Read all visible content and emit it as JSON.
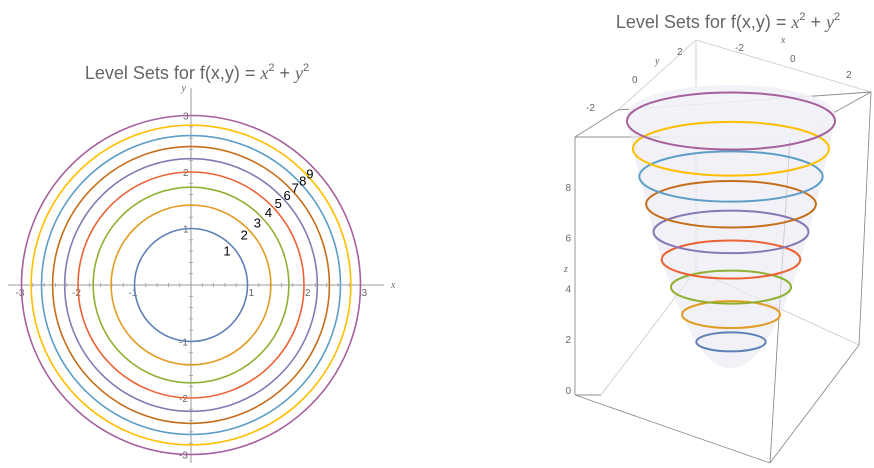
{
  "chart_data": [
    {
      "type": "contour",
      "title_prefix": "Level Sets for f(x,y) = ",
      "title_term1": "x",
      "title_term2": "y",
      "title_exp": "2",
      "title_plus": " + ",
      "xlabel": "x",
      "ylabel": "y",
      "xlim": [
        -3.2,
        3.2
      ],
      "ylim": [
        -3.2,
        3.2
      ],
      "x_tick_labels": [
        "-3",
        "-2",
        "-1",
        "1",
        "2",
        "3"
      ],
      "y_tick_labels": [
        "-3",
        "-2",
        "-1",
        "1",
        "2",
        "3"
      ],
      "levels": [
        1,
        2,
        3,
        4,
        5,
        6,
        7,
        8,
        9
      ],
      "level_labels": [
        "1",
        "2",
        "3",
        "4",
        "5",
        "6",
        "7",
        "8",
        "9"
      ],
      "colors": [
        "#5e81b5",
        "#e19c24",
        "#8fb032",
        "#eb6235",
        "#8778b3",
        "#c56e1a",
        "#5d9ec7",
        "#ffbf00",
        "#a5609d"
      ]
    },
    {
      "type": "surface3d",
      "title_prefix": "Level Sets for f(x,y) = ",
      "title_term1": "x",
      "title_term2": "y",
      "title_exp": "2",
      "title_plus": " + ",
      "xlabel": "x",
      "ylabel": "y",
      "zlabel": "z",
      "x_tick_labels": [
        "-2",
        "0",
        "2"
      ],
      "y_tick_labels": [
        "-2",
        "0",
        "2"
      ],
      "z_tick_labels": [
        "0",
        "2",
        "4",
        "6",
        "8"
      ],
      "zlim": [
        0,
        9
      ],
      "levels": [
        1,
        2,
        3,
        4,
        5,
        6,
        7,
        8,
        9
      ]
    }
  ]
}
